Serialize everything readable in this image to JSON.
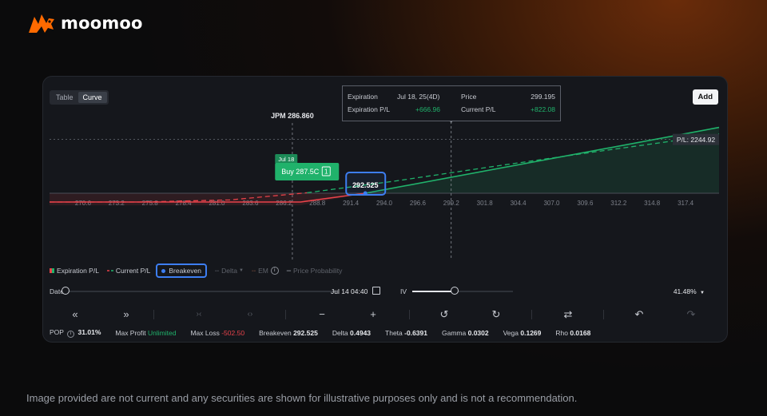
{
  "brand": {
    "name": "moomoo"
  },
  "tabs": [
    {
      "label": "Table"
    },
    {
      "label": "Curve"
    }
  ],
  "add_button": "Add",
  "tooltip": {
    "expiration_label": "Expiration",
    "expiration_value": "Jul 18, 25(4D)",
    "price_label": "Price",
    "price_value": "299.195",
    "exp_pl_label": "Expiration P/L",
    "exp_pl_value": "+666.96",
    "cur_pl_label": "Current P/L",
    "cur_pl_value": "+822.08"
  },
  "chart": {
    "current_price_label": "JPM 286.860",
    "date_tag": "Jul 18",
    "order_tag": "Buy 287.5C",
    "order_qty": "1",
    "breakeven_value": "292.525",
    "pl_label": "P/L: 2244.92",
    "x_ticks": [
      "270.6",
      "273.2",
      "275.8",
      "278.4",
      "281.0",
      "283.6",
      "286.2",
      "288.8",
      "291.4",
      "294.0",
      "296.6",
      "299.2",
      "301.8",
      "304.4",
      "307.0",
      "309.6",
      "312.2",
      "314.8",
      "317.4"
    ]
  },
  "chart_data": {
    "type": "line",
    "x_range": [
      268.0,
      320.0
    ],
    "strike": 287.5,
    "current_price": 286.86,
    "breakeven": 292.525,
    "max_loss": -502.5,
    "series": [
      {
        "name": "Expiration P/L",
        "color": "#20b26b",
        "loss_color": "#e8424a",
        "x": [
          268.0,
          287.5,
          320.0
        ],
        "y": [
          -502.5,
          -502.5,
          2747.5
        ]
      },
      {
        "name": "Current P/L",
        "color": "#20b26b",
        "loss_color": "#e8424a",
        "x": [
          268.0,
          275.0,
          282.0,
          288.0,
          295.0,
          302.0,
          310.0,
          316.0,
          320.0
        ],
        "y": [
          -480,
          -420,
          -280,
          20,
          520,
          1080,
          1700,
          2150,
          2480
        ]
      }
    ],
    "markers": [
      {
        "label": "Breakeven",
        "x": 292.525,
        "y": 0
      }
    ]
  },
  "legend": [
    {
      "label": "Expiration P/L"
    },
    {
      "label": "Current P/L"
    },
    {
      "label": "Breakeven"
    },
    {
      "label": "Delta"
    },
    {
      "label": "EM"
    },
    {
      "label": "Price Probability"
    }
  ],
  "controls": {
    "date_label": "Date",
    "date_value": "Jul 14 04:40",
    "date_slider_fraction": 0.0,
    "iv_label": "IV",
    "iv_value": "41.48%",
    "iv_slider_fraction": 0.42
  },
  "toolbar": [
    {
      "icon": "double-left-icon",
      "glyph": "«"
    },
    {
      "icon": "double-right-icon",
      "glyph": "»"
    },
    {
      "icon": "collapse-icon",
      "glyph": "›‹"
    },
    {
      "icon": "expand-icon",
      "glyph": "‹›"
    },
    {
      "icon": "minus-icon",
      "glyph": "−"
    },
    {
      "icon": "plus-icon",
      "glyph": "+"
    },
    {
      "icon": "history-back-icon",
      "glyph": "↺"
    },
    {
      "icon": "history-forward-icon",
      "glyph": "↻"
    },
    {
      "icon": "swap-icon",
      "glyph": "⇄"
    },
    {
      "icon": "undo-icon",
      "glyph": "↶"
    },
    {
      "icon": "redo-icon",
      "glyph": "↷"
    }
  ],
  "stats": {
    "pop_label": "POP",
    "pop_value": "31.01%",
    "max_profit_label": "Max Profit",
    "max_profit_value": "Unlimited",
    "max_loss_label": "Max Loss",
    "max_loss_value": "-502.50",
    "breakeven_label": "Breakeven",
    "breakeven_value": "292.525",
    "delta_label": "Delta",
    "delta_value": "0.4943",
    "theta_label": "Theta",
    "theta_value": "-0.6391",
    "gamma_label": "Gamma",
    "gamma_value": "0.0302",
    "vega_label": "Vega",
    "vega_value": "0.1269",
    "rho_label": "Rho",
    "rho_value": "0.0168"
  },
  "colors": {
    "profit": "#20b26b",
    "loss": "#e8424a",
    "accent": "#3d7ef2",
    "brand": "#ff6a00"
  },
  "disclaimer": "Image provided are not current and any securities are shown for illustrative purposes only and is not a recommendation."
}
